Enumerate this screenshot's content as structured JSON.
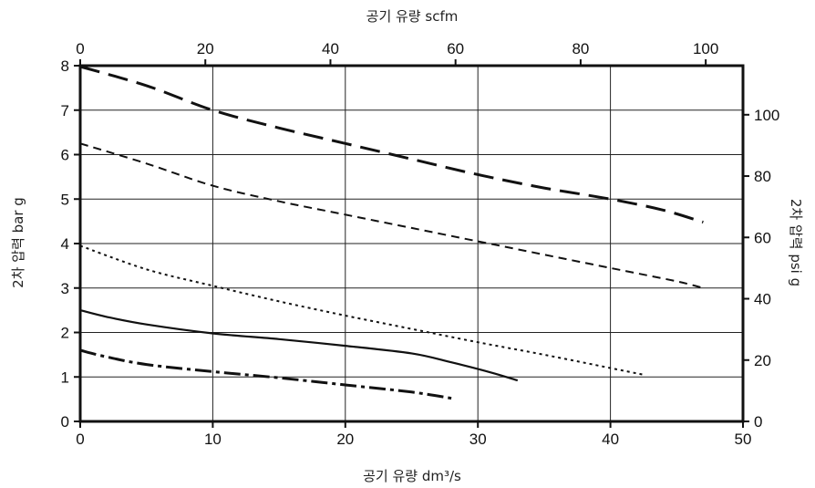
{
  "chart_data": {
    "type": "line",
    "xlabel": "공기 유량 dm³/s",
    "x2label": "공기 유량 scfm",
    "ylabel": "2차 압력 bar g",
    "y2label": "2차 압력 psi g",
    "xlim": [
      0,
      50
    ],
    "x2lim": [
      0,
      100
    ],
    "ylim": [
      0,
      8
    ],
    "y2lim": [
      0,
      116
    ],
    "x_ticks": [
      0,
      10,
      20,
      30,
      40,
      50
    ],
    "x2_ticks": [
      0,
      20,
      40,
      60,
      80,
      100
    ],
    "y_ticks": [
      0,
      1,
      2,
      3,
      4,
      5,
      6,
      7,
      8
    ],
    "y2_ticks": [
      0,
      20,
      40,
      60,
      80,
      100
    ],
    "grid": true,
    "series": [
      {
        "style": "long-dash",
        "points": [
          [
            0,
            7.98
          ],
          [
            5,
            7.55
          ],
          [
            10,
            7.0
          ],
          [
            15,
            6.6
          ],
          [
            20,
            6.25
          ],
          [
            25,
            5.9
          ],
          [
            30,
            5.55
          ],
          [
            35,
            5.25
          ],
          [
            40,
            5.0
          ],
          [
            44,
            4.75
          ],
          [
            47,
            4.48
          ]
        ]
      },
      {
        "style": "short-dash",
        "points": [
          [
            0,
            6.25
          ],
          [
            5,
            5.8
          ],
          [
            10,
            5.3
          ],
          [
            15,
            4.95
          ],
          [
            20,
            4.65
          ],
          [
            25,
            4.35
          ],
          [
            30,
            4.05
          ],
          [
            35,
            3.75
          ],
          [
            40,
            3.45
          ],
          [
            45,
            3.15
          ],
          [
            47,
            3.0
          ]
        ]
      },
      {
        "style": "dotted",
        "points": [
          [
            0,
            3.95
          ],
          [
            5,
            3.42
          ],
          [
            10,
            3.05
          ],
          [
            15,
            2.7
          ],
          [
            20,
            2.38
          ],
          [
            25,
            2.08
          ],
          [
            30,
            1.78
          ],
          [
            35,
            1.5
          ],
          [
            40,
            1.2
          ],
          [
            42.5,
            1.05
          ]
        ]
      },
      {
        "style": "solid",
        "points": [
          [
            0,
            2.5
          ],
          [
            2,
            2.35
          ],
          [
            5,
            2.18
          ],
          [
            10,
            1.98
          ],
          [
            15,
            1.85
          ],
          [
            20,
            1.7
          ],
          [
            25,
            1.53
          ],
          [
            28,
            1.33
          ],
          [
            31,
            1.1
          ],
          [
            33,
            0.92
          ]
        ]
      },
      {
        "style": "dash-dot",
        "points": [
          [
            0,
            1.6
          ],
          [
            2,
            1.45
          ],
          [
            5,
            1.28
          ],
          [
            10,
            1.12
          ],
          [
            15,
            0.98
          ],
          [
            20,
            0.82
          ],
          [
            25,
            0.66
          ],
          [
            28,
            0.52
          ]
        ]
      }
    ]
  }
}
